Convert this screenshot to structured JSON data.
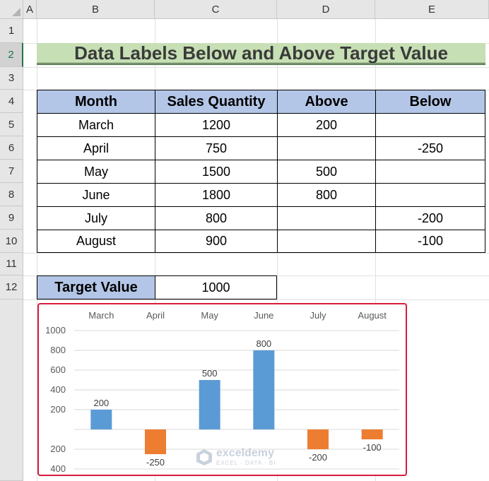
{
  "columns": [
    "A",
    "B",
    "C",
    "D",
    "E"
  ],
  "rows": [
    "1",
    "2",
    "3",
    "4",
    "5",
    "6",
    "7",
    "8",
    "9",
    "10",
    "11",
    "12"
  ],
  "selected_row": "2",
  "title": "Data Labels Below and Above Target Value",
  "table": {
    "headers": [
      "Month",
      "Sales Quantity",
      "Above",
      "Below"
    ],
    "rows": [
      [
        "March",
        "1200",
        "200",
        ""
      ],
      [
        "April",
        "750",
        "",
        "-250"
      ],
      [
        "May",
        "1500",
        "500",
        ""
      ],
      [
        "June",
        "1800",
        "800",
        ""
      ],
      [
        "July",
        "800",
        "",
        "-200"
      ],
      [
        "August",
        "900",
        "",
        "-100"
      ]
    ]
  },
  "target": {
    "label": "Target Value",
    "value": "1000"
  },
  "colors": {
    "above": "#5b9bd5",
    "below": "#ed7d31",
    "header_fill": "#b4c6e7",
    "title_fill": "#c6dfb4",
    "chart_border": "#d81b3c"
  },
  "chart_data": {
    "type": "bar",
    "categories": [
      "March",
      "April",
      "May",
      "June",
      "July",
      "August"
    ],
    "series": [
      {
        "name": "Above",
        "values": [
          200,
          null,
          500,
          800,
          null,
          null
        ]
      },
      {
        "name": "Below",
        "values": [
          null,
          -250,
          null,
          null,
          -200,
          -100
        ]
      }
    ],
    "data_labels": [
      "200",
      "-250",
      "500",
      "800",
      "-200",
      "-100"
    ],
    "y_ticks_positive": [
      200,
      400,
      600,
      800,
      1000
    ],
    "y_ticks_negative": [
      200,
      400
    ],
    "ylim": [
      -400,
      1000
    ],
    "grid": true,
    "category_labels_position": "top"
  },
  "watermark": {
    "name": "exceldemy",
    "sub": "EXCEL · DATA · BI"
  }
}
